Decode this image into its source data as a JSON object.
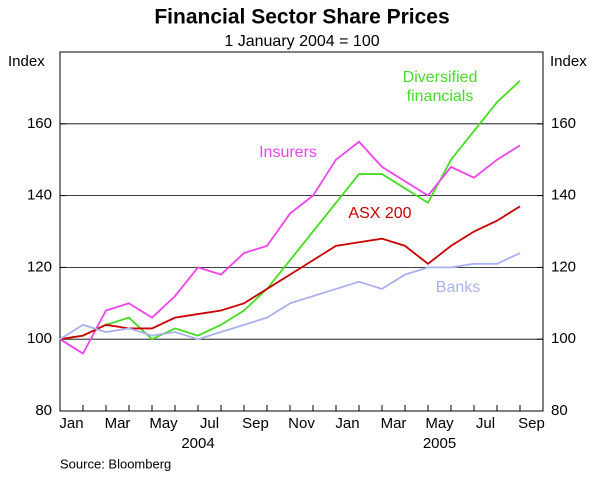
{
  "chart_data": {
    "type": "line",
    "title": "Financial Sector Share Prices",
    "subtitle": "1 January 2004 = 100",
    "ylabel": "Index",
    "y2label": "Index",
    "source": "Source: Bloomberg",
    "x": [
      "2004-01",
      "2004-02",
      "2004-03",
      "2004-04",
      "2004-05",
      "2004-06",
      "2004-07",
      "2004-08",
      "2004-09",
      "2004-10",
      "2004-11",
      "2004-12",
      "2005-01",
      "2005-02",
      "2005-03",
      "2005-04",
      "2005-05",
      "2005-06",
      "2005-07",
      "2005-08",
      "2005-09"
    ],
    "xticks": [
      {
        "value": "2004-01",
        "label": "Jan"
      },
      {
        "value": "2004-03",
        "label": "Mar"
      },
      {
        "value": "2004-05",
        "label": "May"
      },
      {
        "value": "2004-07",
        "label": "Jul"
      },
      {
        "value": "2004-09",
        "label": "Sep"
      },
      {
        "value": "2004-11",
        "label": "Nov"
      },
      {
        "value": "2005-01",
        "label": "Jan"
      },
      {
        "value": "2005-03",
        "label": "Mar"
      },
      {
        "value": "2005-05",
        "label": "May"
      },
      {
        "value": "2005-07",
        "label": "Jul"
      },
      {
        "value": "2005-09",
        "label": "Sep"
      }
    ],
    "years": [
      "2004",
      "2005"
    ],
    "ylim": [
      80,
      180
    ],
    "yticks": [
      80,
      100,
      120,
      140,
      160
    ],
    "y2lim": [
      80,
      180
    ],
    "y2ticks": [
      80,
      100,
      120,
      140,
      160
    ],
    "grid": true,
    "series": [
      {
        "name": "Diversified financials",
        "color": "#44dd22",
        "values": [
          100,
          101,
          104,
          106,
          100,
          103,
          101,
          104,
          108,
          114,
          122,
          130,
          138,
          146,
          146,
          142,
          138,
          150,
          158,
          166,
          172
        ]
      },
      {
        "name": "Insurers",
        "color": "#ee44ee",
        "values": [
          100,
          96,
          108,
          110,
          106,
          112,
          120,
          118,
          124,
          126,
          135,
          140,
          150,
          155,
          148,
          144,
          140,
          148,
          145,
          150,
          154
        ]
      },
      {
        "name": "ASX 200",
        "color": "#cc0000",
        "values": [
          100,
          101,
          104,
          103,
          103,
          106,
          107,
          108,
          110,
          114,
          118,
          122,
          126,
          127,
          128,
          126,
          121,
          126,
          130,
          133,
          137
        ]
      },
      {
        "name": "Banks",
        "color": "#aab0ee",
        "values": [
          100,
          104,
          102,
          103,
          101,
          102,
          100,
          102,
          104,
          106,
          110,
          112,
          114,
          116,
          114,
          118,
          120,
          120,
          121,
          121,
          124
        ]
      }
    ]
  }
}
